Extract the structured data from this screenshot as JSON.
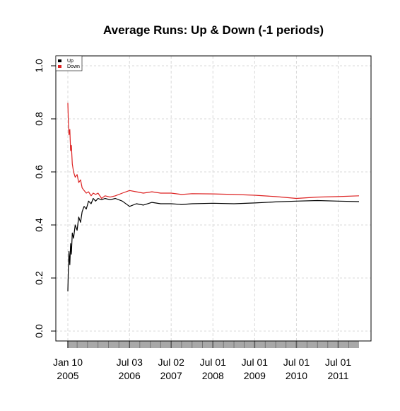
{
  "chart_data": {
    "type": "line",
    "title": "Average Runs: Up & Down (-1 periods)",
    "xlabel": "",
    "ylabel": "",
    "ylim": [
      0,
      1
    ],
    "y_ticks": [
      "0.0",
      "0.2",
      "0.4",
      "0.6",
      "0.8",
      "1.0"
    ],
    "x_ticks": [
      {
        "date": "2005-01-10",
        "label": [
          "Jan 10",
          "2005"
        ]
      },
      {
        "date": "2006-07-03",
        "label": [
          "Jul 03",
          "2006"
        ]
      },
      {
        "date": "2007-07-02",
        "label": [
          "Jul 02",
          "2007"
        ]
      },
      {
        "date": "2008-07-01",
        "label": [
          "Jul 01",
          "2008"
        ]
      },
      {
        "date": "2009-07-01",
        "label": [
          "Jul 01",
          "2009"
        ]
      },
      {
        "date": "2010-07-01",
        "label": [
          "Jul 01",
          "2010"
        ]
      },
      {
        "date": "2011-07-01",
        "label": [
          "Jul 01",
          "2011"
        ]
      }
    ],
    "xlim": [
      "2005-01-10",
      "2011-12-30"
    ],
    "grid": true,
    "legend_position": "top-left",
    "series": [
      {
        "name": "Up",
        "color": "#000000",
        "points": [
          [
            "2005-01-10",
            0.15
          ],
          [
            "2005-01-14",
            0.22
          ],
          [
            "2005-01-20",
            0.3
          ],
          [
            "2005-01-27",
            0.25
          ],
          [
            "2005-02-03",
            0.33
          ],
          [
            "2005-02-10",
            0.29
          ],
          [
            "2005-02-18",
            0.37
          ],
          [
            "2005-03-01",
            0.35
          ],
          [
            "2005-03-15",
            0.4
          ],
          [
            "2005-04-01",
            0.38
          ],
          [
            "2005-04-15",
            0.43
          ],
          [
            "2005-05-01",
            0.41
          ],
          [
            "2005-05-15",
            0.45
          ],
          [
            "2005-06-01",
            0.47
          ],
          [
            "2005-06-20",
            0.46
          ],
          [
            "2005-07-10",
            0.49
          ],
          [
            "2005-08-01",
            0.48
          ],
          [
            "2005-08-20",
            0.5
          ],
          [
            "2005-09-10",
            0.49
          ],
          [
            "2005-10-01",
            0.5
          ],
          [
            "2005-11-01",
            0.495
          ],
          [
            "2005-12-01",
            0.5
          ],
          [
            "2006-01-15",
            0.495
          ],
          [
            "2006-03-01",
            0.5
          ],
          [
            "2006-05-01",
            0.49
          ],
          [
            "2006-07-03",
            0.47
          ],
          [
            "2006-09-01",
            0.48
          ],
          [
            "2006-11-01",
            0.475
          ],
          [
            "2007-01-15",
            0.485
          ],
          [
            "2007-04-01",
            0.48
          ],
          [
            "2007-07-02",
            0.48
          ],
          [
            "2007-10-01",
            0.477
          ],
          [
            "2008-01-01",
            0.48
          ],
          [
            "2008-07-01",
            0.482
          ],
          [
            "2009-01-01",
            0.48
          ],
          [
            "2009-07-01",
            0.483
          ],
          [
            "2010-01-01",
            0.487
          ],
          [
            "2010-07-01",
            0.49
          ],
          [
            "2011-01-01",
            0.492
          ],
          [
            "2011-07-01",
            0.49
          ],
          [
            "2011-12-30",
            0.488
          ]
        ]
      },
      {
        "name": "Down",
        "color": "#dd2222",
        "points": [
          [
            "2005-01-10",
            0.86
          ],
          [
            "2005-01-14",
            0.8
          ],
          [
            "2005-01-20",
            0.74
          ],
          [
            "2005-01-27",
            0.76
          ],
          [
            "2005-02-03",
            0.68
          ],
          [
            "2005-02-10",
            0.7
          ],
          [
            "2005-02-18",
            0.63
          ],
          [
            "2005-03-01",
            0.6
          ],
          [
            "2005-03-15",
            0.58
          ],
          [
            "2005-04-01",
            0.59
          ],
          [
            "2005-04-15",
            0.56
          ],
          [
            "2005-05-01",
            0.57
          ],
          [
            "2005-05-15",
            0.54
          ],
          [
            "2005-06-01",
            0.53
          ],
          [
            "2005-06-20",
            0.52
          ],
          [
            "2005-07-10",
            0.525
          ],
          [
            "2005-08-01",
            0.51
          ],
          [
            "2005-08-20",
            0.52
          ],
          [
            "2005-09-10",
            0.515
          ],
          [
            "2005-10-01",
            0.52
          ],
          [
            "2005-11-01",
            0.5
          ],
          [
            "2005-12-01",
            0.51
          ],
          [
            "2006-01-15",
            0.505
          ],
          [
            "2006-03-01",
            0.51
          ],
          [
            "2006-05-01",
            0.52
          ],
          [
            "2006-07-03",
            0.53
          ],
          [
            "2006-09-01",
            0.525
          ],
          [
            "2006-11-01",
            0.52
          ],
          [
            "2007-01-15",
            0.525
          ],
          [
            "2007-04-01",
            0.52
          ],
          [
            "2007-07-02",
            0.52
          ],
          [
            "2007-10-01",
            0.515
          ],
          [
            "2008-01-01",
            0.518
          ],
          [
            "2008-07-01",
            0.517
          ],
          [
            "2009-01-01",
            0.515
          ],
          [
            "2009-07-01",
            0.512
          ],
          [
            "2010-01-01",
            0.507
          ],
          [
            "2010-07-01",
            0.5
          ],
          [
            "2011-01-01",
            0.505
          ],
          [
            "2011-07-01",
            0.507
          ],
          [
            "2011-12-30",
            0.51
          ]
        ]
      }
    ]
  }
}
